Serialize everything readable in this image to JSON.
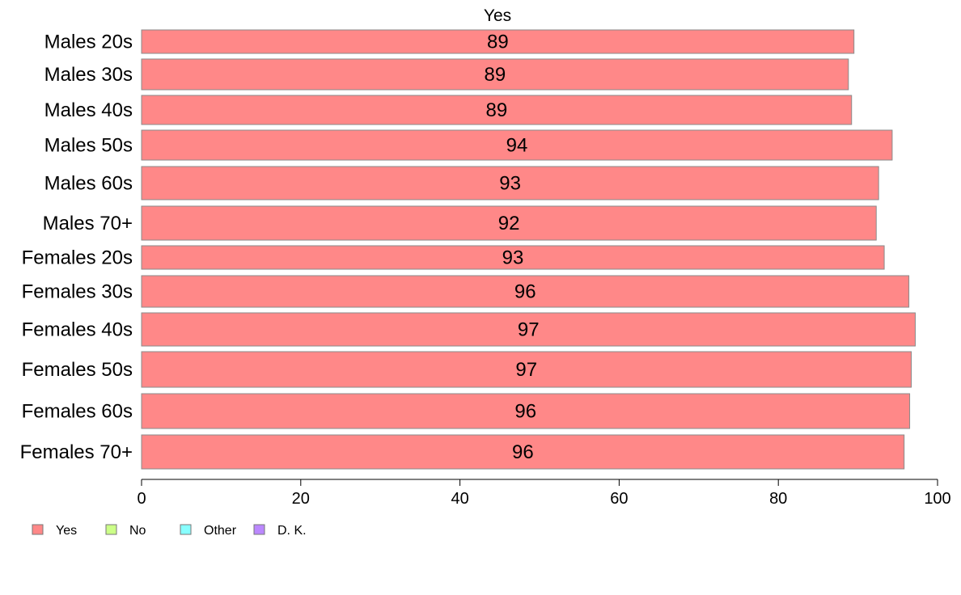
{
  "chart_data": {
    "type": "bar",
    "orientation": "horizontal",
    "title": "Yes",
    "categories": [
      "Males 20s",
      "Males 30s",
      "Males 40s",
      "Males 50s",
      "Males 60s",
      "Males 70+",
      "Females 20s",
      "Females 30s",
      "Females 40s",
      "Females 50s",
      "Females 60s",
      "Females 70+"
    ],
    "series": [
      {
        "name": "Yes",
        "color": "#ff8888",
        "values": [
          89.5,
          88.8,
          89.2,
          94.3,
          92.6,
          92.3,
          93.3,
          96.4,
          97.2,
          96.7,
          96.5,
          95.8
        ]
      }
    ],
    "data_labels": [
      "89",
      "89",
      "89",
      "94",
      "93",
      "92",
      "93",
      "96",
      "97",
      "97",
      "96",
      "96"
    ],
    "xlim": [
      0,
      100
    ],
    "xticks": [
      0,
      20,
      40,
      60,
      80,
      100
    ],
    "xlabel": "",
    "ylabel": "",
    "grid": false,
    "legend": {
      "position": "bottom-left",
      "items": [
        {
          "label": "Yes",
          "color": "#ff8888"
        },
        {
          "label": "No",
          "color": "#ccff88"
        },
        {
          "label": "Other",
          "color": "#88ffff"
        },
        {
          "label": "D. K.",
          "color": "#bb88ff"
        }
      ]
    }
  }
}
